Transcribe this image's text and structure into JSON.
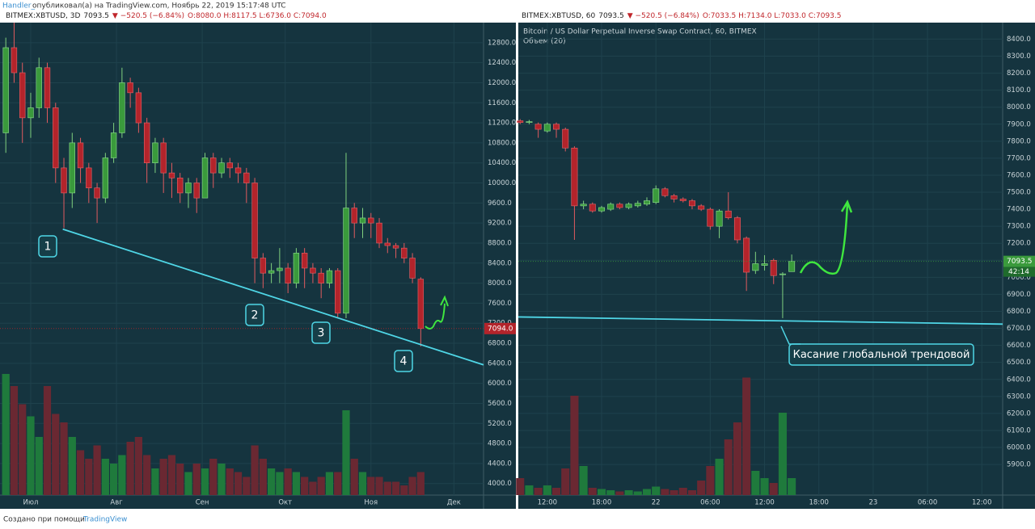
{
  "header": {
    "author": "Handler_",
    "published": "опубликовал(а) на TradingView.com, Ноябрь 22, 2019 15:17:48 UTC"
  },
  "footer": {
    "text": "Создано при помощи",
    "brand": "TradingView"
  },
  "chart_data": [
    {
      "type": "candlestick",
      "symbol": "BITMEX:XBTUSD, 3D",
      "last": "7093.5",
      "change": "▼ −520.5 (−6.84%)",
      "ohlc": "O:8080.0 H:8117.5 L:6736.0 C:7094.0",
      "x": [
        -9,
        -6,
        -3,
        0,
        3,
        6,
        9,
        12,
        15,
        18,
        21,
        24,
        27,
        30,
        33,
        36,
        39,
        42,
        45,
        48,
        51,
        54,
        57,
        60,
        63,
        66,
        69,
        72,
        75,
        78,
        81,
        84,
        87,
        90,
        93,
        96,
        99,
        102,
        105,
        108,
        111,
        114,
        117,
        120,
        123,
        126,
        129,
        132,
        135,
        138,
        141
      ],
      "open": [
        11000,
        12700,
        12200,
        11300,
        11500,
        12300,
        11500,
        10300,
        9800,
        10800,
        10300,
        9900,
        9700,
        10500,
        11000,
        12000,
        11800,
        11200,
        10400,
        10800,
        10200,
        10100,
        9800,
        10000,
        9700,
        10500,
        10200,
        10400,
        10300,
        10200,
        10000,
        8500,
        8200,
        8250,
        8300,
        8000,
        8600,
        8300,
        8200,
        8000,
        8250,
        7400,
        9500,
        9200,
        9300,
        9200,
        8800,
        8750,
        8700,
        8500,
        8080
      ],
      "high": [
        12900,
        13200,
        12400,
        11800,
        12500,
        12400,
        11600,
        10500,
        11000,
        10900,
        10400,
        10000,
        10600,
        11200,
        12300,
        12100,
        11900,
        11300,
        10900,
        10900,
        10400,
        10200,
        10100,
        10100,
        10600,
        10600,
        10500,
        10500,
        10400,
        10300,
        10100,
        8600,
        8400,
        8700,
        8400,
        8700,
        8700,
        8400,
        8300,
        8300,
        8300,
        10600,
        9600,
        9500,
        9400,
        9300,
        8900,
        8800,
        8800,
        8600,
        8117.5
      ],
      "low": [
        10600,
        12000,
        10800,
        10900,
        11300,
        11200,
        10000,
        9100,
        9500,
        10000,
        9600,
        9200,
        9600,
        10400,
        10900,
        11500,
        11000,
        10000,
        10200,
        9800,
        9700,
        9600,
        9500,
        9400,
        9700,
        9900,
        10100,
        10100,
        10000,
        9600,
        8000,
        7900,
        8000,
        8000,
        7800,
        7900,
        7900,
        8000,
        7700,
        7900,
        7300,
        7300,
        8900,
        8900,
        8900,
        8700,
        8600,
        8500,
        8400,
        8000,
        6736
      ],
      "close": [
        12700,
        12200,
        11300,
        11500,
        12300,
        11500,
        10300,
        9800,
        10800,
        10300,
        9900,
        9700,
        10500,
        11000,
        12000,
        11800,
        11200,
        10400,
        10800,
        10200,
        10100,
        9800,
        10000,
        9700,
        10500,
        10200,
        10400,
        10300,
        10200,
        10000,
        8500,
        8200,
        8250,
        8300,
        8000,
        8600,
        8300,
        8200,
        8000,
        8250,
        7400,
        9500,
        9200,
        9300,
        9200,
        8800,
        8750,
        8700,
        8500,
        8100,
        7094
      ],
      "volume": [
        100,
        90,
        75,
        65,
        48,
        90,
        67,
        60,
        48,
        37,
        30,
        41,
        30,
        26,
        33,
        44,
        48,
        33,
        22,
        30,
        33,
        26,
        19,
        26,
        22,
        30,
        26,
        22,
        19,
        15,
        41,
        30,
        22,
        19,
        22,
        19,
        15,
        11,
        15,
        19,
        19,
        70,
        30,
        19,
        15,
        15,
        11,
        11,
        8,
        15,
        19
      ],
      "vlim": [
        0,
        100
      ],
      "up_color": "#3a9a3c",
      "down_color": "#b3242b",
      "vol_up_color": "#1f7a3c",
      "vol_down_color": "#6a2832",
      "xlim": [
        -11.1,
        163.7
      ],
      "xticks": [
        {
          "value": 0,
          "label": "Июл"
        },
        {
          "value": 31,
          "label": "Авг"
        },
        {
          "value": 62,
          "label": "Сен"
        },
        {
          "value": 92,
          "label": "Окт"
        },
        {
          "value": 123,
          "label": "Ноя"
        },
        {
          "value": 153,
          "label": "Дек"
        }
      ],
      "ylim": [
        3770,
        13200
      ],
      "yticks": [
        {
          "value": 4000,
          "label": "4000.0"
        },
        {
          "value": 4400,
          "label": "4400.0"
        },
        {
          "value": 4800,
          "label": "4800.0"
        },
        {
          "value": 5200,
          "label": "5200.0"
        },
        {
          "value": 5600,
          "label": "5600.0"
        },
        {
          "value": 6000,
          "label": "6000.0"
        },
        {
          "value": 6400,
          "label": "6400.0"
        },
        {
          "value": 6800,
          "label": "6800.0"
        },
        {
          "value": 7200,
          "label": "7200.0"
        },
        {
          "value": 7600,
          "label": "7600.0"
        },
        {
          "value": 8000,
          "label": "8000.0"
        },
        {
          "value": 8400,
          "label": "8400.0"
        },
        {
          "value": 8800,
          "label": "8800.0"
        },
        {
          "value": 9200,
          "label": "9200.0"
        },
        {
          "value": 9600,
          "label": "9600.0"
        },
        {
          "value": 10000,
          "label": "10000.0"
        },
        {
          "value": 10400,
          "label": "10400.0"
        },
        {
          "value": 10800,
          "label": "10800.0"
        },
        {
          "value": 11200,
          "label": "11200.0"
        },
        {
          "value": 11600,
          "label": "11600.0"
        },
        {
          "value": 12000,
          "label": "12000.0"
        },
        {
          "value": 12400,
          "label": "12400.0"
        },
        {
          "value": 12800,
          "label": "12800.0"
        }
      ],
      "grid": true,
      "price_tag": {
        "value": 7094,
        "label": "7094.0",
        "color": "#b3242b"
      },
      "trendline": {
        "x": [
          11.6,
          163.7
        ],
        "y": [
          9077,
          6369
        ],
        "color": "#4fd6e6"
      },
      "annotations": [
        "1",
        "2",
        "3",
        "4"
      ]
    },
    {
      "type": "candlestick",
      "symbol": "BITMEX:XBTUSD, 60",
      "last": "7093.5",
      "change": "▼ −520.5 (−6.84%)",
      "ohlc": "O:7033.5 H:7134.0 L:7033.0 C:7093.5",
      "title": "Bitcoin / US Dollar Perpetual Inverse Swap Contract, 60, BITMEX",
      "subtitle": "Объем (20)",
      "x": [
        -3,
        -2,
        -1,
        0,
        1,
        2,
        3,
        4,
        5,
        6,
        7,
        8,
        9,
        10,
        11,
        12,
        13,
        14,
        15,
        16,
        17,
        18,
        19,
        20,
        21,
        22,
        23,
        24,
        25,
        26,
        27
      ],
      "open": [
        7920,
        7910,
        7900,
        7860,
        7900,
        7870,
        7760,
        7420,
        7430,
        7390,
        7400,
        7430,
        7410,
        7420,
        7430,
        7440,
        7520,
        7480,
        7460,
        7450,
        7420,
        7400,
        7300,
        7390,
        7350,
        7230,
        7040,
        7070,
        7100,
        7020,
        7033.5
      ],
      "high": [
        7930,
        7925,
        7910,
        7910,
        7910,
        7880,
        7770,
        7450,
        7440,
        7420,
        7440,
        7440,
        7440,
        7450,
        7470,
        7540,
        7530,
        7490,
        7470,
        7460,
        7430,
        7410,
        7400,
        7500,
        7360,
        7240,
        7150,
        7130,
        7110,
        7030,
        7134
      ],
      "low": [
        7900,
        7900,
        7820,
        7850,
        7820,
        7740,
        7220,
        7400,
        7380,
        7380,
        7390,
        7400,
        7400,
        7410,
        7420,
        7430,
        7470,
        7440,
        7440,
        7400,
        7390,
        7280,
        7230,
        7340,
        7200,
        6920,
        7020,
        7040,
        6960,
        6760,
        7033
      ],
      "close": [
        7910,
        7915,
        7870,
        7900,
        7870,
        7760,
        7420,
        7430,
        7390,
        7410,
        7430,
        7410,
        7430,
        7435,
        7450,
        7520,
        7480,
        7460,
        7450,
        7420,
        7400,
        7300,
        7390,
        7350,
        7220,
        7030,
        7080,
        7080,
        7010,
        7020,
        7093.5
      ],
      "volume": [
        14,
        8,
        6,
        8,
        6,
        22,
        82,
        24,
        6,
        5,
        4,
        3,
        4,
        3,
        5,
        7,
        5,
        4,
        6,
        4,
        12,
        24,
        30,
        46,
        60,
        97,
        20,
        14,
        10,
        68,
        14
      ],
      "vlim": [
        0,
        100
      ],
      "up_color": "#3a9a3c",
      "down_color": "#b3242b",
      "vol_up_color": "#1f7a3c",
      "vol_down_color": "#6a2832",
      "xlim": [
        -3.2,
        50.3
      ],
      "xticks": [
        {
          "value": 0,
          "label": "12:00"
        },
        {
          "value": 6,
          "label": "18:00"
        },
        {
          "value": 12,
          "label": "22"
        },
        {
          "value": 18,
          "label": "06:00"
        },
        {
          "value": 24,
          "label": "12:00"
        },
        {
          "value": 30,
          "label": "18:00"
        },
        {
          "value": 36,
          "label": "23"
        },
        {
          "value": 42,
          "label": "06:00"
        },
        {
          "value": 48,
          "label": "12:00"
        }
      ],
      "ylim": [
        5720,
        8497
      ],
      "yticks": [
        {
          "value": 5900,
          "label": "5900.0"
        },
        {
          "value": 6000,
          "label": "6000.0"
        },
        {
          "value": 6100,
          "label": "6100.0"
        },
        {
          "value": 6200,
          "label": "6200.0"
        },
        {
          "value": 6300,
          "label": "6300.0"
        },
        {
          "value": 6400,
          "label": "6400.0"
        },
        {
          "value": 6500,
          "label": "6500.0"
        },
        {
          "value": 6600,
          "label": "6600.0"
        },
        {
          "value": 6700,
          "label": "6700.0"
        },
        {
          "value": 6800,
          "label": "6800.0"
        },
        {
          "value": 6900,
          "label": "6900.0"
        },
        {
          "value": 7000,
          "label": "7000.0"
        },
        {
          "value": 7100,
          "label": "7100.0"
        },
        {
          "value": 7200,
          "label": "7200.0"
        },
        {
          "value": 7300,
          "label": "7300.0"
        },
        {
          "value": 7400,
          "label": "7400.0"
        },
        {
          "value": 7500,
          "label": "7500.0"
        },
        {
          "value": 7600,
          "label": "7600.0"
        },
        {
          "value": 7700,
          "label": "7700.0"
        },
        {
          "value": 7800,
          "label": "7800.0"
        },
        {
          "value": 7900,
          "label": "7900.0"
        },
        {
          "value": 8000,
          "label": "8000.0"
        },
        {
          "value": 8100,
          "label": "8100.0"
        },
        {
          "value": 8200,
          "label": "8200.0"
        },
        {
          "value": 8300,
          "label": "8300.0"
        },
        {
          "value": 8400,
          "label": "8400.0"
        }
      ],
      "grid": true,
      "price_tag": {
        "value": 7093.5,
        "label": "7093.5",
        "color": "#3a9a3c"
      },
      "countdown": "42:14",
      "trendline": {
        "x": [
          -3.2,
          50.3
        ],
        "y": [
          6767,
          6725
        ],
        "color": "#4fd6e6"
      },
      "annotations": [
        "Касание глобальной трендовой"
      ]
    }
  ]
}
